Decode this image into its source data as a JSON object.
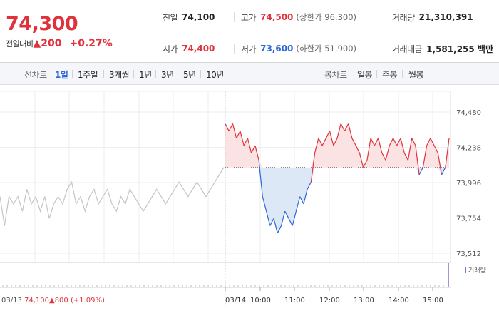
{
  "summary": {
    "price": "74,300",
    "change_label": "전일대비",
    "change_arrow": "▲",
    "change_value": "200",
    "change_percent": "+0.27%"
  },
  "info": {
    "prev_close_label": "전일",
    "prev_close": "74,100",
    "high_label": "고가",
    "high": "74,500",
    "upper_limit": "(상한가 96,300)",
    "volume_label": "거래량",
    "volume": "21,310,391",
    "open_label": "시가",
    "open": "74,400",
    "low_label": "저가",
    "low": "73,600",
    "lower_limit": "(하한가 51,900)",
    "amount_label": "거래대금",
    "amount": "1,581,255 백만"
  },
  "tabs": {
    "line_label": "선차트",
    "line": [
      "1일",
      "1주일",
      "3개월",
      "1년",
      "3년",
      "5년",
      "10년"
    ],
    "line_active": 0,
    "candle_label": "봉차트",
    "candle": [
      "일봉",
      "주봉",
      "월봉"
    ]
  },
  "chart_data": {
    "type": "line",
    "title": "",
    "y_ticks": [
      "74,480",
      "74,238",
      "73,996",
      "73,754",
      "73,512"
    ],
    "ylim": [
      73512,
      74480
    ],
    "x_ticks": [
      "03/14",
      "10:00",
      "11:00",
      "12:00",
      "13:00",
      "14:00",
      "15:00"
    ],
    "baseline": 74100,
    "prev_day_label": "03/13",
    "prev_day_close": "74,100",
    "prev_day_change": "▲800 (+1.09%)",
    "volume_legend": "거래량",
    "colors": {
      "up": "#e0323c",
      "down": "#2b66d9",
      "prev": "#c4c4c4",
      "up_fill": "#fbe3e3",
      "down_fill": "#dde8f7"
    },
    "prev_day_series": [
      73900,
      73700,
      73900,
      73850,
      73900,
      73800,
      73950,
      73850,
      73900,
      73800,
      73900,
      73750,
      73850,
      73900,
      73850,
      73950,
      74000,
      73850,
      73900,
      73800,
      73900,
      73950,
      73850,
      73900,
      73950,
      73850,
      73800,
      73900,
      73850,
      73950,
      73900,
      73850,
      73800,
      73850,
      73900,
      73950,
      73900,
      73850,
      73900,
      73950,
      74000,
      73950,
      73900,
      73950,
      74000,
      73950,
      73900,
      73950,
      74000,
      74050,
      74100
    ],
    "today_series": [
      74400,
      74350,
      74400,
      74300,
      74350,
      74250,
      74300,
      74200,
      74250,
      74150,
      73900,
      73800,
      73700,
      73750,
      73650,
      73700,
      73800,
      73750,
      73700,
      73800,
      73900,
      73850,
      73950,
      74000,
      74200,
      74300,
      74250,
      74300,
      74350,
      74250,
      74300,
      74400,
      74350,
      74400,
      74300,
      74250,
      74200,
      74100,
      74150,
      74300,
      74250,
      74300,
      74200,
      74150,
      74250,
      74300,
      74250,
      74300,
      74200,
      74150,
      74300,
      74250,
      74050,
      74100,
      74250,
      74300,
      74250,
      74200,
      74050,
      74100,
      74300
    ]
  }
}
